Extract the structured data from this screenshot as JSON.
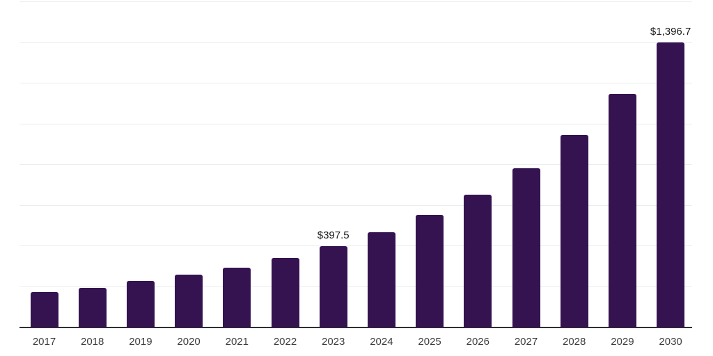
{
  "chart_data": {
    "type": "bar",
    "title": "",
    "xlabel": "",
    "ylabel": "",
    "categories": [
      "2017",
      "2018",
      "2019",
      "2020",
      "2021",
      "2022",
      "2023",
      "2024",
      "2025",
      "2026",
      "2027",
      "2028",
      "2029",
      "2030"
    ],
    "series": [
      {
        "name": "market-value",
        "values": [
          170,
          192,
          224,
          257,
          292,
          340,
          397.5,
          464,
          549,
          651,
          781,
          944,
          1145,
          1396.7
        ]
      }
    ],
    "data_labels": [
      {
        "category": "2023",
        "text": "$397.5"
      },
      {
        "category": "2030",
        "text": "$1,396.7"
      }
    ],
    "ylim": [
      0,
      1600
    ],
    "grid_step": 200,
    "grid": true,
    "legend_position": "none",
    "colors": {
      "bar": "#351350",
      "gridline": "#ededed",
      "axis_line": "#2f2f2f",
      "data_label": "#1a1a1a",
      "tick_label": "#3d3d3d",
      "background": "#ffffff"
    }
  }
}
